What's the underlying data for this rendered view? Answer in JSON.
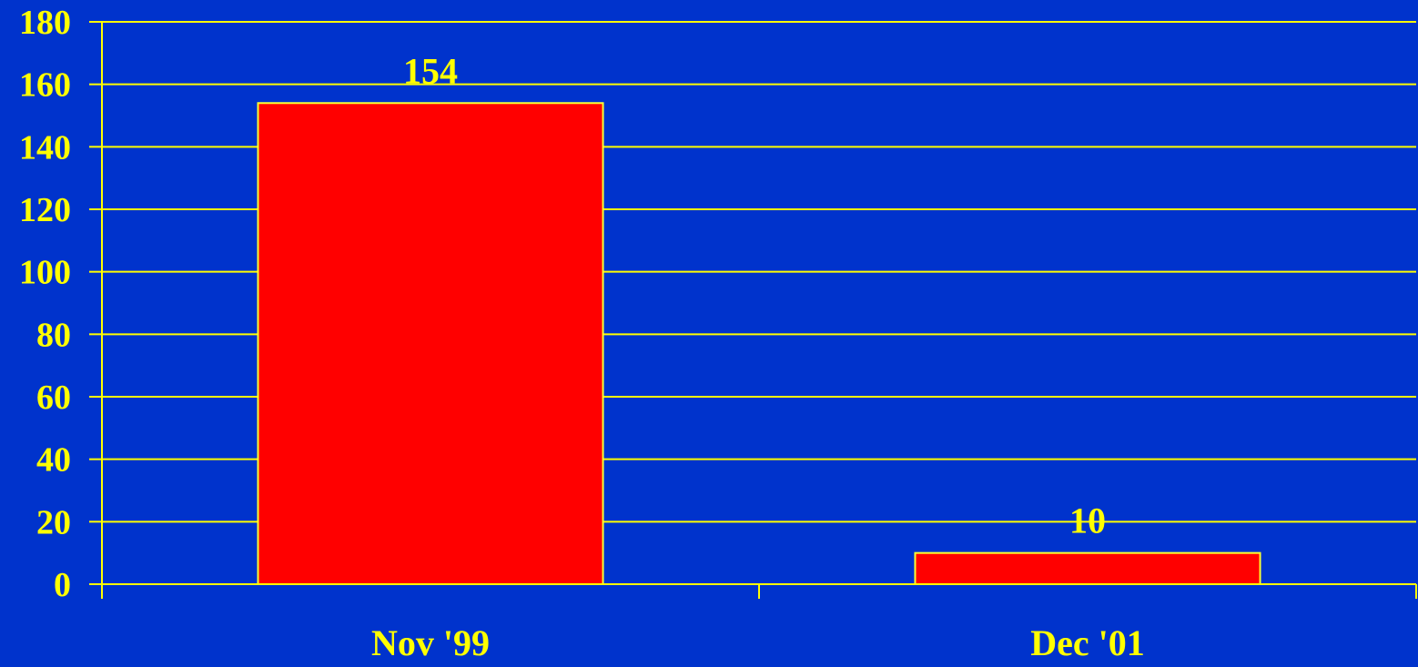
{
  "chart_data": {
    "type": "bar",
    "title": "",
    "xlabel": "",
    "ylabel": "",
    "categories": [
      "Nov '99",
      "Dec '01"
    ],
    "values": [
      154,
      10
    ],
    "data_labels": [
      "154",
      "10"
    ],
    "ylim": [
      0,
      180
    ],
    "yticks": [
      0,
      20,
      40,
      60,
      80,
      100,
      120,
      140,
      160,
      180
    ],
    "ytick_labels": [
      "0",
      "20",
      "40",
      "60",
      "80",
      "100",
      "120",
      "140",
      "160",
      "180"
    ],
    "grid": true,
    "legend": "none"
  },
  "colors": {
    "background": "#0033cc",
    "bar_fill": "#ff0000",
    "bar_stroke": "#ffff33",
    "gridline": "#ffff00",
    "axis": "#ffff00",
    "text": "#ffff00"
  }
}
